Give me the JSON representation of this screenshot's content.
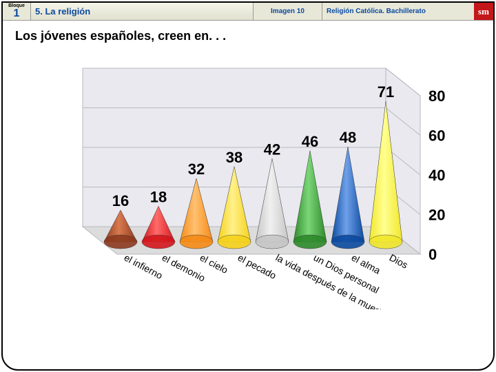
{
  "header": {
    "bloque_word": "Bloque",
    "bloque_num": "1",
    "title": "5. La religión",
    "imagen": "Imagen 10",
    "right": "Religión Católica. Bachillerato",
    "logo": "sm"
  },
  "subtitle": "Los jóvenes españoles, creen en. . .",
  "chart": {
    "type": "3d-cone-bar",
    "categories": [
      "el infierno",
      "el demonio",
      "el cielo",
      "el pecado",
      "la vida después de la muerte",
      "un Dios personal",
      "el alma",
      "Dios"
    ],
    "values": [
      16,
      18,
      32,
      38,
      42,
      46,
      48,
      71
    ],
    "cone_colors": [
      "#8d3a1e",
      "#d4161c",
      "#f58a16",
      "#f6d21a",
      "#c6c6c6",
      "#2d8a2a",
      "#0b4aa0",
      "#f1e72b"
    ],
    "cone_highlight": [
      "#d97a50",
      "#ff6b6b",
      "#ffc070",
      "#fff08a",
      "#f0f0f0",
      "#7bd678",
      "#6fa0e8",
      "#ffff90"
    ],
    "ylim": [
      0,
      80
    ],
    "ytick_step": 20,
    "background_color": "#ffffff",
    "wall_color": "#e9e9ef",
    "floor_color": "#dcdcdc",
    "grid_color": "#b8b8c0",
    "label_fontsize": 22,
    "cat_fontsize": 14
  }
}
